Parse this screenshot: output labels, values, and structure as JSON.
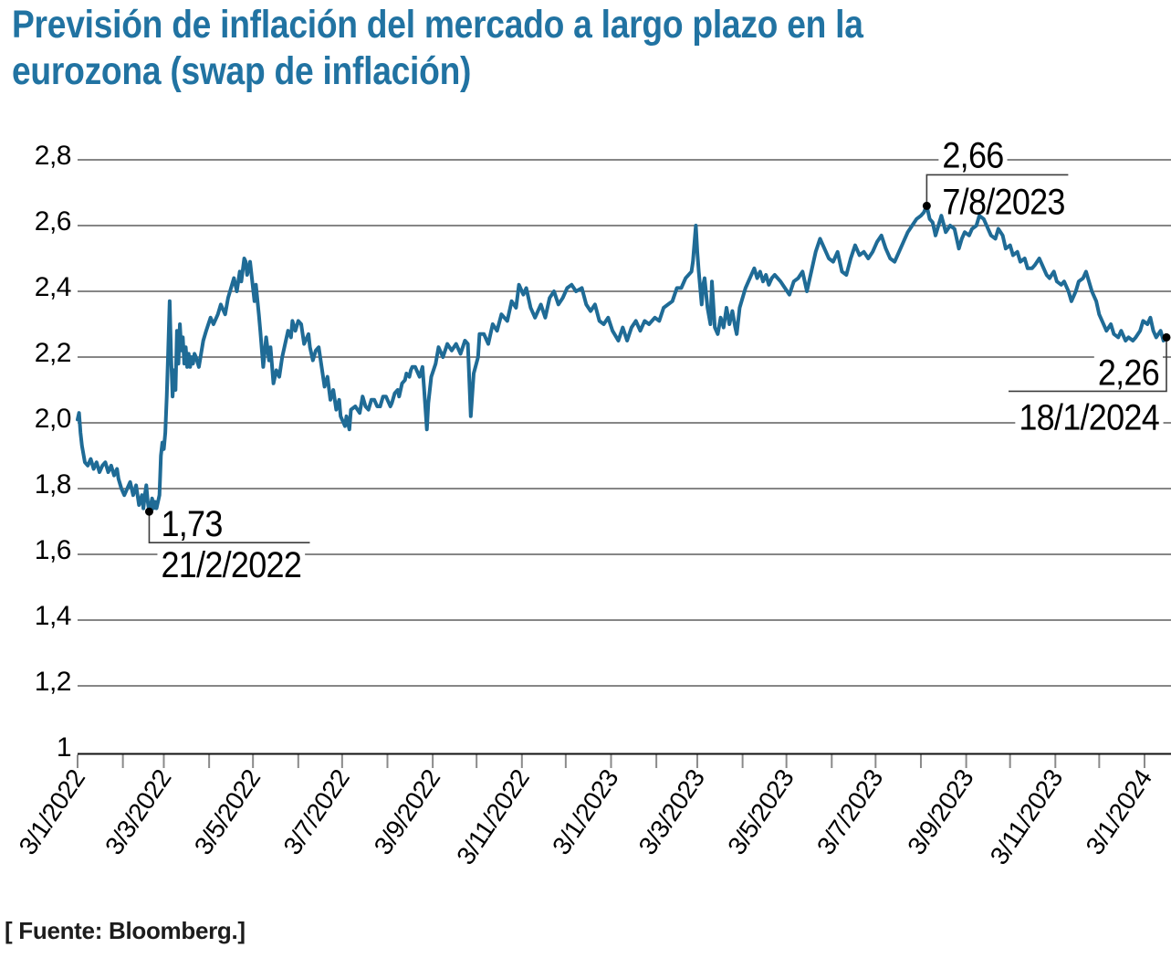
{
  "title_lines": [
    "Previsión de inflación del mercado a largo plazo en la",
    "eurozona (swap de inflación)"
  ],
  "source_note": "[ Fuente: Bloomberg.]",
  "colors": {
    "title": "#2173a2",
    "line": "#1f6b96",
    "grid": "#3f3f3f",
    "axis": "#111111",
    "tick": "#8a8a8a",
    "annotation_line": "#3c3c3c",
    "annotation_text": "#000000",
    "marker": "#000000"
  },
  "chart_data": {
    "type": "line",
    "title": "Previsión de inflación del mercado a largo plazo en la eurozona (swap de inflación)",
    "xlabel": "",
    "ylabel": "",
    "ylim": [
      1,
      2.8
    ],
    "ytick_step": 0.2,
    "ytick_labels": [
      "1",
      "1,2",
      "1,4",
      "1,6",
      "1,8",
      "2,0",
      "2,2",
      "2,4",
      "2,6",
      "2,8"
    ],
    "grid": "horizontal",
    "x_start_date": "3/1/2022",
    "x_end_date": "18/1/2024",
    "x_ticks": [
      [
        0,
        "3/1/2022"
      ],
      [
        31,
        ""
      ],
      [
        59,
        "3/3/2022"
      ],
      [
        90,
        ""
      ],
      [
        120,
        "3/5/2022"
      ],
      [
        151,
        ""
      ],
      [
        181,
        "3/7/2022"
      ],
      [
        212,
        ""
      ],
      [
        243,
        "3/9/2022"
      ],
      [
        273,
        ""
      ],
      [
        304,
        "3/11/2022"
      ],
      [
        334,
        ""
      ],
      [
        365,
        "3/1/2023"
      ],
      [
        396,
        ""
      ],
      [
        424,
        "3/3/2023"
      ],
      [
        455,
        ""
      ],
      [
        485,
        "3/5/2023"
      ],
      [
        516,
        ""
      ],
      [
        546,
        "3/7/2023"
      ],
      [
        577,
        ""
      ],
      [
        608,
        "3/9/2023"
      ],
      [
        638,
        ""
      ],
      [
        669,
        "3/11/2023"
      ],
      [
        699,
        ""
      ],
      [
        730,
        "3/1/2024"
      ]
    ],
    "annotations": [
      {
        "value_label": "1,73",
        "date_label": "21/2/2022",
        "day": 49,
        "value": 1.73,
        "placement": "below-right"
      },
      {
        "value_label": "2,66",
        "date_label": "7/8/2023",
        "day": 581,
        "value": 2.66,
        "placement": "above-right"
      },
      {
        "value_label": "2,26",
        "date_label": "18/1/2024",
        "day": 745,
        "value": 2.26,
        "placement": "below-left"
      }
    ],
    "series_name": "Swap de inflación (eurozona, largo plazo)",
    "series": [
      [
        0,
        2.01
      ],
      [
        1,
        2.03
      ],
      [
        2,
        1.97
      ],
      [
        3,
        1.93
      ],
      [
        5,
        1.88
      ],
      [
        7,
        1.87
      ],
      [
        9,
        1.89
      ],
      [
        11,
        1.86
      ],
      [
        13,
        1.88
      ],
      [
        15,
        1.85
      ],
      [
        17,
        1.87
      ],
      [
        19,
        1.88
      ],
      [
        21,
        1.85
      ],
      [
        23,
        1.87
      ],
      [
        25,
        1.84
      ],
      [
        27,
        1.86
      ],
      [
        28,
        1.83
      ],
      [
        30,
        1.8
      ],
      [
        32,
        1.78
      ],
      [
        34,
        1.8
      ],
      [
        36,
        1.82
      ],
      [
        38,
        1.78
      ],
      [
        40,
        1.81
      ],
      [
        42,
        1.75
      ],
      [
        44,
        1.78
      ],
      [
        45,
        1.74
      ],
      [
        46,
        1.78
      ],
      [
        47,
        1.81
      ],
      [
        48,
        1.76
      ],
      [
        49,
        1.73
      ],
      [
        50,
        1.75
      ],
      [
        51,
        1.77
      ],
      [
        52,
        1.74
      ],
      [
        53,
        1.76
      ],
      [
        54,
        1.74
      ],
      [
        55,
        1.76
      ],
      [
        56,
        1.78
      ],
      [
        57,
        1.9
      ],
      [
        58,
        1.94
      ],
      [
        59,
        1.92
      ],
      [
        60,
        1.97
      ],
      [
        61,
        2.08
      ],
      [
        62,
        2.22
      ],
      [
        63,
        2.37
      ],
      [
        64,
        2.2
      ],
      [
        65,
        2.08
      ],
      [
        66,
        2.16
      ],
      [
        67,
        2.1
      ],
      [
        68,
        2.28
      ],
      [
        69,
        2.18
      ],
      [
        70,
        2.3
      ],
      [
        71,
        2.22
      ],
      [
        72,
        2.26
      ],
      [
        73,
        2.18
      ],
      [
        74,
        2.23
      ],
      [
        75,
        2.17
      ],
      [
        76,
        2.21
      ],
      [
        77,
        2.17
      ],
      [
        78,
        2.2
      ],
      [
        79,
        2.18
      ],
      [
        80,
        2.21
      ],
      [
        81,
        2.2
      ],
      [
        83,
        2.17
      ],
      [
        86,
        2.25
      ],
      [
        88,
        2.28
      ],
      [
        91,
        2.32
      ],
      [
        93,
        2.3
      ],
      [
        96,
        2.33
      ],
      [
        98,
        2.36
      ],
      [
        101,
        2.33
      ],
      [
        103,
        2.38
      ],
      [
        105,
        2.41
      ],
      [
        107,
        2.44
      ],
      [
        109,
        2.4
      ],
      [
        111,
        2.46
      ],
      [
        112,
        2.43
      ],
      [
        114,
        2.5
      ],
      [
        115,
        2.49
      ],
      [
        116,
        2.45
      ],
      [
        118,
        2.49
      ],
      [
        120,
        2.41
      ],
      [
        121,
        2.37
      ],
      [
        122,
        2.42
      ],
      [
        124,
        2.33
      ],
      [
        125,
        2.28
      ],
      [
        127,
        2.17
      ],
      [
        129,
        2.26
      ],
      [
        131,
        2.19
      ],
      [
        132,
        2.23
      ],
      [
        134,
        2.12
      ],
      [
        136,
        2.16
      ],
      [
        138,
        2.14
      ],
      [
        140,
        2.2
      ],
      [
        142,
        2.24
      ],
      [
        144,
        2.28
      ],
      [
        146,
        2.26
      ],
      [
        147,
        2.31
      ],
      [
        149,
        2.28
      ],
      [
        151,
        2.31
      ],
      [
        153,
        2.3
      ],
      [
        155,
        2.24
      ],
      [
        158,
        2.27
      ],
      [
        159,
        2.23
      ],
      [
        161,
        2.19
      ],
      [
        163,
        2.22
      ],
      [
        165,
        2.23
      ],
      [
        167,
        2.17
      ],
      [
        169,
        2.11
      ],
      [
        171,
        2.14
      ],
      [
        173,
        2.07
      ],
      [
        175,
        2.1
      ],
      [
        177,
        2.04
      ],
      [
        179,
        2.07
      ],
      [
        180,
        2.02
      ],
      [
        181,
        2.01
      ],
      [
        183,
        1.99
      ],
      [
        184,
        2.02
      ],
      [
        186,
        1.98
      ],
      [
        187,
        2.04
      ],
      [
        190,
        2.05
      ],
      [
        193,
        2.03
      ],
      [
        195,
        2.08
      ],
      [
        197,
        2.05
      ],
      [
        199,
        2.04
      ],
      [
        201,
        2.07
      ],
      [
        203,
        2.07
      ],
      [
        205,
        2.05
      ],
      [
        207,
        2.05
      ],
      [
        209,
        2.08
      ],
      [
        211,
        2.08
      ],
      [
        214,
        2.05
      ],
      [
        215,
        2.06
      ],
      [
        217,
        2.09
      ],
      [
        219,
        2.1
      ],
      [
        220,
        2.08
      ],
      [
        222,
        2.12
      ],
      [
        224,
        2.13
      ],
      [
        225,
        2.15
      ],
      [
        227,
        2.14
      ],
      [
        228,
        2.16
      ],
      [
        229,
        2.17
      ],
      [
        231,
        2.17
      ],
      [
        234,
        2.14
      ],
      [
        236,
        2.17
      ],
      [
        237,
        2.11
      ],
      [
        239,
        1.98
      ],
      [
        240,
        2.06
      ],
      [
        242,
        2.14
      ],
      [
        245,
        2.18
      ],
      [
        247,
        2.23
      ],
      [
        250,
        2.2
      ],
      [
        253,
        2.24
      ],
      [
        256,
        2.22
      ],
      [
        259,
        2.24
      ],
      [
        262,
        2.21
      ],
      [
        265,
        2.25
      ],
      [
        267,
        2.24
      ],
      [
        269,
        2.02
      ],
      [
        271,
        2.15
      ],
      [
        274,
        2.2
      ],
      [
        275,
        2.27
      ],
      [
        278,
        2.27
      ],
      [
        281,
        2.24
      ],
      [
        284,
        2.3
      ],
      [
        287,
        2.28
      ],
      [
        290,
        2.33
      ],
      [
        294,
        2.31
      ],
      [
        297,
        2.37
      ],
      [
        300,
        2.35
      ],
      [
        302,
        2.42
      ],
      [
        305,
        2.39
      ],
      [
        307,
        2.41
      ],
      [
        310,
        2.35
      ],
      [
        313,
        2.32
      ],
      [
        317,
        2.36
      ],
      [
        320,
        2.32
      ],
      [
        323,
        2.38
      ],
      [
        326,
        2.4
      ],
      [
        329,
        2.36
      ],
      [
        332,
        2.38
      ],
      [
        335,
        2.41
      ],
      [
        338,
        2.42
      ],
      [
        341,
        2.4
      ],
      [
        345,
        2.41
      ],
      [
        348,
        2.36
      ],
      [
        351,
        2.34
      ],
      [
        354,
        2.36
      ],
      [
        357,
        2.31
      ],
      [
        360,
        2.3
      ],
      [
        363,
        2.32
      ],
      [
        366,
        2.28
      ],
      [
        370,
        2.25
      ],
      [
        373,
        2.29
      ],
      [
        376,
        2.25
      ],
      [
        379,
        2.29
      ],
      [
        382,
        2.31
      ],
      [
        385,
        2.28
      ],
      [
        388,
        2.31
      ],
      [
        391,
        2.3
      ],
      [
        395,
        2.32
      ],
      [
        398,
        2.31
      ],
      [
        401,
        2.35
      ],
      [
        404,
        2.36
      ],
      [
        407,
        2.37
      ],
      [
        410,
        2.41
      ],
      [
        413,
        2.41
      ],
      [
        416,
        2.44
      ],
      [
        420,
        2.46
      ],
      [
        421,
        2.49
      ],
      [
        423,
        2.6
      ],
      [
        424,
        2.52
      ],
      [
        425,
        2.46
      ],
      [
        427,
        2.36
      ],
      [
        428,
        2.42
      ],
      [
        429,
        2.44
      ],
      [
        431,
        2.35
      ],
      [
        433,
        2.3
      ],
      [
        434,
        2.43
      ],
      [
        436,
        2.29
      ],
      [
        438,
        2.27
      ],
      [
        440,
        2.32
      ],
      [
        442,
        2.29
      ],
      [
        444,
        2.35
      ],
      [
        446,
        2.3
      ],
      [
        448,
        2.34
      ],
      [
        450,
        2.29
      ],
      [
        451,
        2.27
      ],
      [
        453,
        2.35
      ],
      [
        455,
        2.38
      ],
      [
        457,
        2.41
      ],
      [
        459,
        2.43
      ],
      [
        461,
        2.45
      ],
      [
        463,
        2.47
      ],
      [
        465,
        2.44
      ],
      [
        467,
        2.46
      ],
      [
        469,
        2.43
      ],
      [
        471,
        2.45
      ],
      [
        473,
        2.42
      ],
      [
        475,
        2.44
      ],
      [
        477,
        2.45
      ],
      [
        481,
        2.43
      ],
      [
        484,
        2.41
      ],
      [
        487,
        2.39
      ],
      [
        490,
        2.43
      ],
      [
        493,
        2.44
      ],
      [
        496,
        2.46
      ],
      [
        499,
        2.4
      ],
      [
        502,
        2.46
      ],
      [
        505,
        2.52
      ],
      [
        508,
        2.56
      ],
      [
        511,
        2.53
      ],
      [
        514,
        2.5
      ],
      [
        517,
        2.49
      ],
      [
        520,
        2.52
      ],
      [
        523,
        2.46
      ],
      [
        526,
        2.45
      ],
      [
        529,
        2.5
      ],
      [
        532,
        2.54
      ],
      [
        535,
        2.51
      ],
      [
        538,
        2.52
      ],
      [
        541,
        2.5
      ],
      [
        544,
        2.52
      ],
      [
        547,
        2.55
      ],
      [
        550,
        2.57
      ],
      [
        553,
        2.53
      ],
      [
        556,
        2.5
      ],
      [
        559,
        2.49
      ],
      [
        562,
        2.52
      ],
      [
        565,
        2.55
      ],
      [
        568,
        2.58
      ],
      [
        571,
        2.6
      ],
      [
        574,
        2.62
      ],
      [
        577,
        2.63
      ],
      [
        579,
        2.64
      ],
      [
        581,
        2.66
      ],
      [
        583,
        2.62
      ],
      [
        585,
        2.61
      ],
      [
        587,
        2.57
      ],
      [
        589,
        2.6
      ],
      [
        591,
        2.63
      ],
      [
        594,
        2.58
      ],
      [
        597,
        2.6
      ],
      [
        600,
        2.59
      ],
      [
        603,
        2.53
      ],
      [
        605,
        2.56
      ],
      [
        607,
        2.58
      ],
      [
        610,
        2.57
      ],
      [
        612,
        2.59
      ],
      [
        615,
        2.6
      ],
      [
        617,
        2.63
      ],
      [
        620,
        2.62
      ],
      [
        622,
        2.6
      ],
      [
        625,
        2.57
      ],
      [
        628,
        2.56
      ],
      [
        630,
        2.59
      ],
      [
        633,
        2.57
      ],
      [
        635,
        2.53
      ],
      [
        638,
        2.54
      ],
      [
        640,
        2.51
      ],
      [
        643,
        2.52
      ],
      [
        645,
        2.49
      ],
      [
        648,
        2.5
      ],
      [
        650,
        2.47
      ],
      [
        653,
        2.47
      ],
      [
        655,
        2.48
      ],
      [
        658,
        2.5
      ],
      [
        660,
        2.48
      ],
      [
        663,
        2.45
      ],
      [
        665,
        2.44
      ],
      [
        668,
        2.46
      ],
      [
        670,
        2.43
      ],
      [
        673,
        2.42
      ],
      [
        675,
        2.43
      ],
      [
        678,
        2.4
      ],
      [
        680,
        2.37
      ],
      [
        683,
        2.4
      ],
      [
        685,
        2.43
      ],
      [
        688,
        2.44
      ],
      [
        690,
        2.46
      ],
      [
        692,
        2.43
      ],
      [
        694,
        2.4
      ],
      [
        697,
        2.37
      ],
      [
        699,
        2.33
      ],
      [
        702,
        2.3
      ],
      [
        704,
        2.28
      ],
      [
        707,
        2.3
      ],
      [
        709,
        2.27
      ],
      [
        712,
        2.26
      ],
      [
        714,
        2.28
      ],
      [
        717,
        2.25
      ],
      [
        719,
        2.26
      ],
      [
        722,
        2.25
      ],
      [
        724,
        2.26
      ],
      [
        727,
        2.28
      ],
      [
        729,
        2.31
      ],
      [
        732,
        2.3
      ],
      [
        734,
        2.32
      ],
      [
        736,
        2.28
      ],
      [
        738,
        2.26
      ],
      [
        741,
        2.28
      ],
      [
        743,
        2.25
      ],
      [
        745,
        2.26
      ]
    ]
  }
}
